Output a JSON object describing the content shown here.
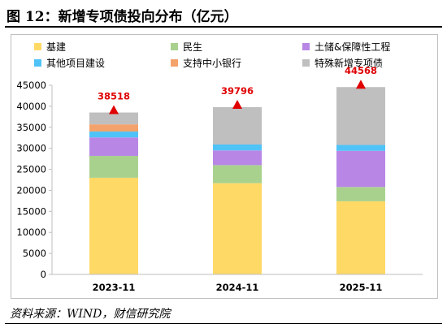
{
  "figure": {
    "title": "图 12：新增专项债投向分布（亿元）",
    "source": "资料来源：WIND，财信研究院"
  },
  "chart_data": {
    "type": "bar",
    "stacked": true,
    "unit": "亿元",
    "categories": [
      "2023-11",
      "2024-11",
      "2025-11"
    ],
    "ylim": [
      0,
      45000
    ],
    "yticks": [
      0,
      5000,
      10000,
      15000,
      20000,
      25000,
      30000,
      35000,
      40000,
      45000
    ],
    "grid": false,
    "legend": "top",
    "series": [
      {
        "name": "基建",
        "color": "#FFD966",
        "values": [
          23000,
          21700,
          17400
        ]
      },
      {
        "name": "民生",
        "color": "#A9D18E",
        "values": [
          5200,
          4300,
          3400
        ]
      },
      {
        "name": "土储&保障性工程",
        "color": "#B887E6",
        "values": [
          4400,
          3500,
          8600
        ]
      },
      {
        "name": "其他项目建设",
        "color": "#4FC3F7",
        "values": [
          1400,
          1400,
          1400
        ]
      },
      {
        "name": "支持中小银行",
        "color": "#F4A26C",
        "values": [
          1700,
          0,
          0
        ]
      },
      {
        "name": "特殊新增专项债",
        "color": "#BFBFBF",
        "values": [
          2818,
          8896,
          13768
        ]
      }
    ],
    "totals": {
      "values": [
        38518,
        39796,
        44568
      ],
      "labels": [
        "38518",
        "39796",
        "44568"
      ],
      "marker_color": "#E00000"
    }
  }
}
